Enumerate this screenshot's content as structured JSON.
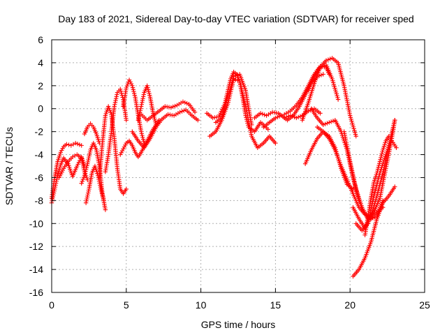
{
  "chart_data": {
    "type": "scatter",
    "title": "Day 183 of 2021, Sidereal Day-to-day VTEC variation (SDTVAR) for receiver sped",
    "xlabel": "GPS time / hours",
    "ylabel": "SDTVAR / TECUs",
    "xlim": [
      0,
      25
    ],
    "ylim": [
      -16,
      6
    ],
    "x_ticks": [
      0,
      5,
      10,
      15,
      20,
      25
    ],
    "y_ticks": [
      -16,
      -14,
      -12,
      -10,
      -8,
      -6,
      -4,
      -2,
      0,
      2,
      4,
      6
    ],
    "x_tick_labels": [
      "0",
      "5",
      "10",
      "15",
      "20",
      "25"
    ],
    "y_tick_labels": [
      "-16",
      "-14",
      "-12",
      "-10",
      "-8",
      "-6",
      "-4",
      "-2",
      "0",
      "2",
      "4",
      "6"
    ],
    "grid": true,
    "marker": "+",
    "color": "#ff0000",
    "series": [
      {
        "name": "s1",
        "x": [
          0.0,
          0.2,
          0.4,
          0.6,
          0.8,
          1.0,
          1.3,
          1.6,
          2.0
        ],
        "y": [
          -7.8,
          -6.0,
          -4.6,
          -3.8,
          -3.3,
          -3.1,
          -3.2,
          -3.0,
          -3.2
        ]
      },
      {
        "name": "s2",
        "x": [
          0.0,
          0.2,
          0.4,
          0.6,
          0.8,
          1.1,
          1.4,
          1.7,
          2.0,
          2.2
        ],
        "y": [
          -8.2,
          -7.0,
          -5.8,
          -4.9,
          -4.3,
          -4.8,
          -5.9,
          -5.0,
          -4.2,
          -5.0
        ]
      },
      {
        "name": "s3",
        "x": [
          0.5,
          0.8,
          1.1,
          1.4,
          1.7,
          2.0,
          2.2,
          2.4
        ],
        "y": [
          -6.0,
          -5.2,
          -4.6,
          -4.2,
          -4.0,
          -4.3,
          -5.5,
          -6.2
        ]
      },
      {
        "name": "s4",
        "x": [
          2.0,
          2.2,
          2.4,
          2.6,
          2.8,
          3.0,
          3.2,
          3.4,
          3.6
        ],
        "y": [
          -6.5,
          -5.8,
          -4.8,
          -3.6,
          -3.0,
          -3.6,
          -5.0,
          -7.4,
          -8.8
        ]
      },
      {
        "name": "s5",
        "x": [
          2.3,
          2.5,
          2.7,
          2.9,
          3.1,
          3.3,
          3.5
        ],
        "y": [
          -8.2,
          -7.0,
          -5.6,
          -5.0,
          -5.8,
          -7.0,
          -8.0
        ]
      },
      {
        "name": "s6",
        "x": [
          2.2,
          2.4,
          2.6,
          2.8,
          3.0,
          3.2
        ],
        "y": [
          -2.2,
          -1.6,
          -1.3,
          -1.6,
          -2.2,
          -3.0
        ]
      },
      {
        "name": "s7",
        "x": [
          3.2,
          3.4,
          3.6,
          3.8,
          4.0,
          4.2,
          4.4,
          4.6,
          4.8,
          5.0
        ],
        "y": [
          -6.0,
          -3.0,
          -0.6,
          0.2,
          -0.5,
          -2.6,
          -5.2,
          -7.0,
          -7.4,
          -7.0
        ]
      },
      {
        "name": "s8",
        "x": [
          3.6,
          3.8,
          4.0,
          4.2,
          4.4,
          4.6,
          4.8,
          5.0
        ],
        "y": [
          -5.5,
          -4.0,
          -2.0,
          0.2,
          1.4,
          1.7,
          0.8,
          -1.0
        ]
      },
      {
        "name": "s9",
        "x": [
          4.6,
          4.8,
          5.0,
          5.2,
          5.4,
          5.6,
          5.8,
          6.0,
          6.4,
          6.8,
          7.2
        ],
        "y": [
          -4.0,
          -3.5,
          -3.0,
          -2.8,
          -3.2,
          -3.8,
          -4.2,
          -3.8,
          -2.8,
          -1.8,
          -1.0
        ]
      },
      {
        "name": "s10",
        "x": [
          4.8,
          5.0,
          5.2,
          5.4,
          5.6,
          5.8,
          6.0,
          6.2
        ],
        "y": [
          0.2,
          1.8,
          2.5,
          2.0,
          1.0,
          -0.6,
          -2.0,
          -3.0
        ]
      },
      {
        "name": "s11",
        "x": [
          5.4,
          5.8,
          6.2,
          6.6,
          7.0,
          7.4,
          7.8,
          8.2,
          8.6,
          9.0,
          9.4,
          9.8
        ],
        "y": [
          -2.0,
          -2.8,
          -3.4,
          -2.6,
          -1.6,
          -0.9,
          -0.5,
          -0.6,
          -0.3,
          -0.1,
          -0.6,
          -1.0
        ]
      },
      {
        "name": "s12",
        "x": [
          6.0,
          6.4,
          6.8,
          7.2,
          7.6,
          8.0,
          8.4,
          8.8,
          9.2,
          9.6
        ],
        "y": [
          -0.5,
          -1.0,
          -0.6,
          -0.2,
          0.2,
          0.1,
          0.3,
          0.6,
          0.4,
          -0.3
        ]
      },
      {
        "name": "s13",
        "x": [
          5.8,
          6.0,
          6.2,
          6.4,
          6.6,
          6.8,
          7.0
        ],
        "y": [
          -1.0,
          0.2,
          1.4,
          2.0,
          1.0,
          -0.4,
          -1.4
        ]
      },
      {
        "name": "s14",
        "x": [
          10.4,
          10.8,
          11.2,
          11.6,
          12.0,
          12.2,
          12.4,
          12.6,
          12.8,
          13.0,
          13.2,
          13.4,
          13.6,
          13.8,
          14.0,
          14.2,
          14.5
        ],
        "y": [
          -0.4,
          -0.8,
          -0.7,
          0.4,
          2.6,
          3.2,
          3.0,
          2.4,
          1.0,
          -0.6,
          -1.6,
          -1.8,
          -2.0,
          -1.6,
          -1.2,
          -1.4,
          -1.8
        ]
      },
      {
        "name": "s15",
        "x": [
          10.6,
          11.0,
          11.4,
          11.8,
          12.2,
          12.6,
          13.0,
          13.4,
          13.8,
          14.2,
          14.6,
          15.0
        ],
        "y": [
          -2.4,
          -2.0,
          -1.0,
          0.4,
          2.6,
          2.4,
          0.2,
          -2.4,
          -3.4,
          -3.0,
          -2.4,
          -3.0
        ]
      },
      {
        "name": "s16",
        "x": [
          11.0,
          11.4,
          11.8,
          12.2,
          12.6,
          13.0,
          13.2,
          13.4
        ],
        "y": [
          -1.2,
          -0.8,
          1.0,
          2.8,
          3.0,
          1.6,
          0.0,
          -1.4
        ]
      },
      {
        "name": "s17",
        "x": [
          13.6,
          14.0,
          14.4,
          14.8,
          15.2,
          15.6,
          16.0,
          16.4,
          16.8,
          17.2,
          17.6,
          18.0
        ],
        "y": [
          -0.8,
          -0.4,
          -0.6,
          -0.3,
          -0.4,
          -0.8,
          -0.6,
          -0.8,
          -0.6,
          -0.2,
          0.0,
          -0.4
        ]
      },
      {
        "name": "s18",
        "x": [
          14.2,
          14.6,
          15.0,
          15.4,
          15.8,
          16.2,
          16.6,
          17.0,
          17.4,
          17.8,
          18.2
        ],
        "y": [
          -1.6,
          -1.2,
          -0.8,
          -0.6,
          -1.0,
          -0.6,
          0.2,
          1.2,
          2.2,
          2.8,
          3.0
        ]
      },
      {
        "name": "s19",
        "x": [
          15.6,
          16.0,
          16.4,
          16.8,
          17.2,
          17.6,
          18.0,
          18.4,
          18.6
        ],
        "y": [
          -0.5,
          -0.2,
          0.3,
          1.0,
          2.0,
          3.0,
          3.7,
          3.6,
          3.0
        ]
      },
      {
        "name": "s20",
        "x": [
          16.8,
          17.2,
          17.6,
          18.0,
          18.4,
          18.8,
          19.2
        ],
        "y": [
          -1.0,
          0.5,
          2.2,
          3.6,
          3.8,
          2.6,
          0.8
        ]
      },
      {
        "name": "s21",
        "x": [
          17.2,
          17.6,
          18.0,
          18.4,
          18.8,
          19.2,
          19.6,
          20.0,
          20.4
        ],
        "y": [
          1.6,
          2.8,
          3.6,
          4.2,
          4.4,
          4.0,
          2.0,
          -0.6,
          -2.4
        ]
      },
      {
        "name": "s22",
        "x": [
          17.4,
          17.8,
          18.2,
          18.6,
          19.0,
          19.4,
          19.8,
          20.2,
          20.6,
          21.0,
          21.4,
          21.8,
          22.2
        ],
        "y": [
          0.0,
          -0.8,
          -1.4,
          -1.2,
          -1.0,
          -2.0,
          -3.6,
          -6.0,
          -8.0,
          -9.2,
          -9.6,
          -9.0,
          -8.6
        ]
      },
      {
        "name": "s23",
        "x": [
          17.8,
          18.2,
          18.6,
          19.0,
          19.4,
          19.8,
          20.2,
          20.6,
          21.0,
          21.4,
          21.8,
          22.2
        ],
        "y": [
          -1.6,
          -2.0,
          -2.6,
          -3.6,
          -5.0,
          -6.2,
          -7.4,
          -8.6,
          -9.2,
          -9.6,
          -9.4,
          -8.0
        ]
      },
      {
        "name": "s24",
        "x": [
          17.0,
          17.4,
          17.8,
          18.2,
          18.6,
          19.0,
          19.4,
          19.8,
          20.2
        ],
        "y": [
          -4.8,
          -3.6,
          -2.6,
          -2.0,
          -2.4,
          -3.4,
          -5.2,
          -6.6,
          -7.0
        ]
      },
      {
        "name": "s25",
        "x": [
          19.6,
          20.0,
          20.4,
          20.8,
          21.2,
          21.6,
          22.0,
          22.4,
          22.8,
          23.0
        ],
        "y": [
          -2.0,
          -4.6,
          -7.0,
          -8.6,
          -9.6,
          -9.0,
          -7.8,
          -5.2,
          -2.6,
          -1.0
        ]
      },
      {
        "name": "s26",
        "x": [
          20.2,
          20.6,
          21.0,
          21.4,
          21.8,
          22.2,
          22.6,
          23.0
        ],
        "y": [
          -8.6,
          -9.6,
          -10.4,
          -9.4,
          -7.6,
          -5.6,
          -3.2,
          -1.0
        ]
      },
      {
        "name": "s27",
        "x": [
          20.4,
          20.8,
          21.2,
          21.6,
          22.0,
          22.4,
          22.8,
          23.1
        ],
        "y": [
          -10.0,
          -10.6,
          -10.0,
          -7.6,
          -5.6,
          -4.0,
          -2.8,
          -3.4
        ]
      },
      {
        "name": "s28",
        "x": [
          20.2,
          20.6,
          21.0,
          21.4,
          21.8,
          22.2,
          22.6,
          23.0
        ],
        "y": [
          -14.6,
          -14.0,
          -13.0,
          -11.6,
          -9.6,
          -8.2,
          -7.6,
          -6.8
        ]
      },
      {
        "name": "s29",
        "x": [
          21.0,
          21.2,
          21.4,
          21.6,
          21.8,
          22.0,
          22.2,
          22.4,
          22.6
        ],
        "y": [
          -11.0,
          -9.4,
          -7.8,
          -6.4,
          -5.6,
          -4.6,
          -3.6,
          -2.8,
          -2.4
        ]
      }
    ]
  }
}
